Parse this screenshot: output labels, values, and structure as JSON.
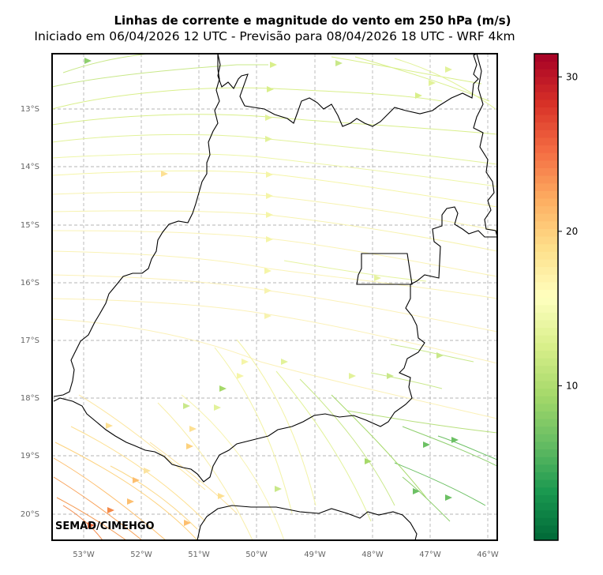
{
  "header": {
    "title": "Linhas de corrente e magnitude do vento em 250 hPa (m/s)",
    "subtitle": "Iniciado em 06/04/2026 12 UTC - Previsão para 08/04/2026 18 UTC - WRF 4km"
  },
  "map": {
    "credit": "SEMAD/CIMEHGO",
    "lon_labels": [
      "53°W",
      "52°W",
      "51°W",
      "50°W",
      "49°W",
      "48°W",
      "47°W",
      "46°W"
    ],
    "lat_labels": [
      "13°S",
      "14°S",
      "15°S",
      "16°S",
      "17°S",
      "18°S",
      "19°S",
      "20°S"
    ],
    "grid": true
  },
  "colorbar": {
    "colormap": "RdYlGn_r",
    "ticks": [
      "10",
      "20",
      "30"
    ],
    "range": [
      0,
      31.5
    ],
    "colors": [
      "#006837",
      "#1a9850",
      "#66bd63",
      "#a6d96a",
      "#d9ef8b",
      "#ffffbf",
      "#fee08b",
      "#fdae61",
      "#f46d43",
      "#d73027",
      "#a50026"
    ]
  }
}
